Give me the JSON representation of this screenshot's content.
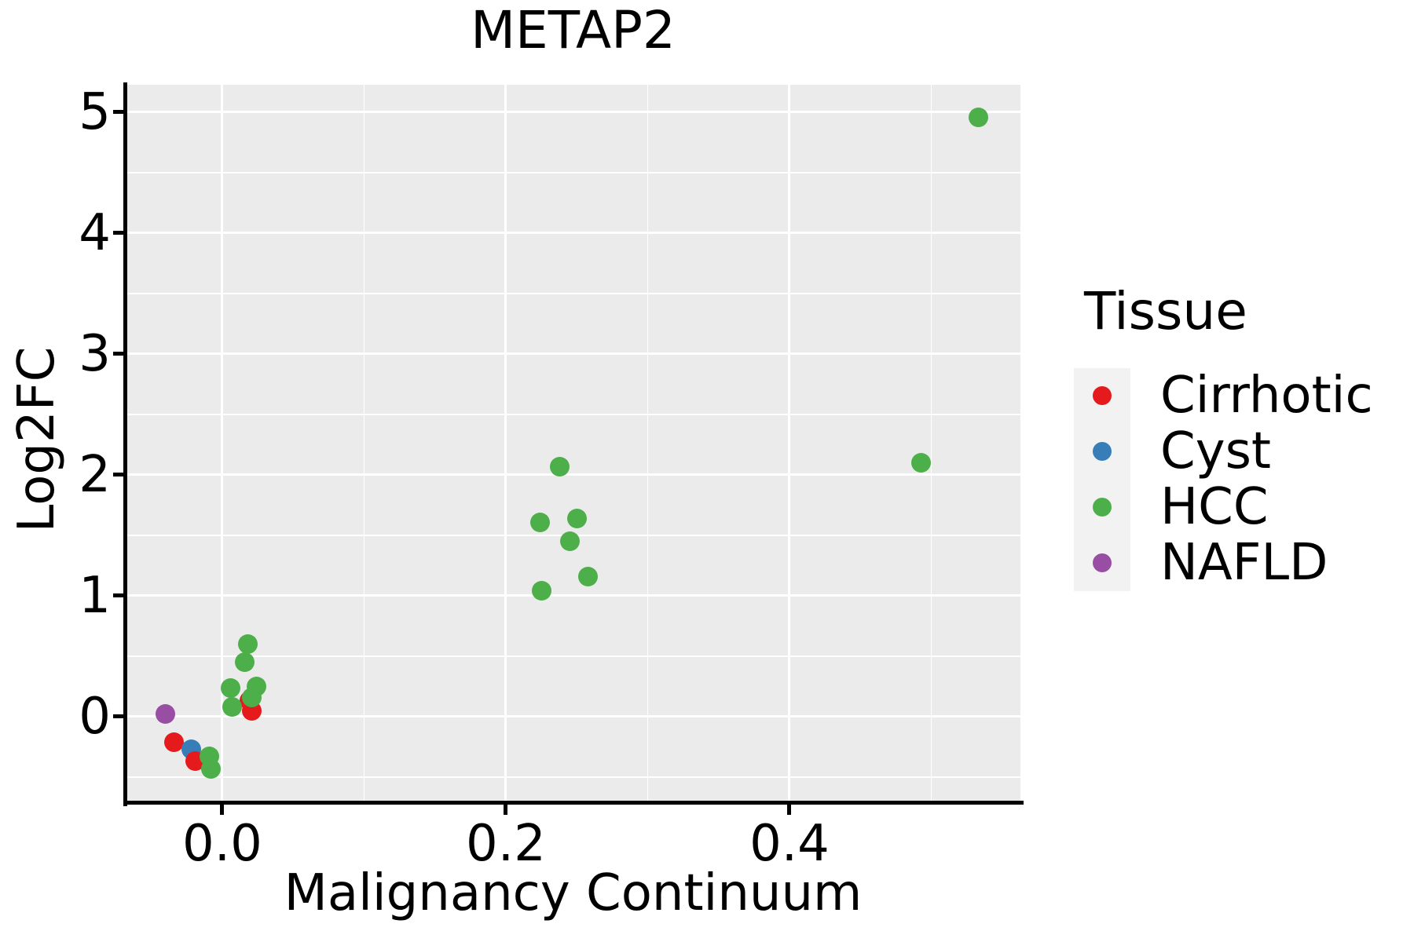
{
  "chart_data": {
    "type": "scatter",
    "title": "METAP2",
    "xlabel": "Malignancy Continuum",
    "ylabel": "Log2FC",
    "xlim": [
      -0.0681,
      0.5629
    ],
    "ylim": [
      -0.708,
      5.227
    ],
    "x_major_ticks": [
      {
        "value": 0.0,
        "label": "0.0"
      },
      {
        "value": 0.2,
        "label": "0.2"
      },
      {
        "value": 0.4,
        "label": "0.4"
      }
    ],
    "x_minor_ticks": [
      0.1,
      0.3,
      0.5
    ],
    "y_major_ticks": [
      {
        "value": 0,
        "label": "0"
      },
      {
        "value": 1,
        "label": "1"
      },
      {
        "value": 2,
        "label": "2"
      },
      {
        "value": 3,
        "label": "3"
      },
      {
        "value": 4,
        "label": "4"
      },
      {
        "value": 5,
        "label": "5"
      }
    ],
    "y_minor_ticks": [
      -0.5,
      0.5,
      1.5,
      2.5,
      3.5,
      4.5
    ],
    "grid": {
      "panel_bg": "#EBEBEB",
      "major_color": "#FFFFFF",
      "minor_color": "#FFFFFF",
      "grid_on": true
    },
    "legend": {
      "title": "Tissue",
      "position": "right",
      "key_bg": "#F2F2F2",
      "items": [
        {
          "label": "Cirrhotic",
          "color": "#E41A1C"
        },
        {
          "label": "Cyst",
          "color": "#377EB8"
        },
        {
          "label": "HCC",
          "color": "#4DAF4A"
        },
        {
          "label": "NAFLD",
          "color": "#984EA3"
        }
      ]
    },
    "tissue_colors": {
      "Cirrhotic": "#E41A1C",
      "Cyst": "#377EB8",
      "HCC": "#4DAF4A",
      "NAFLD": "#984EA3"
    },
    "points": [
      {
        "tissue": "NAFLD",
        "x": -0.04,
        "y": 0.02
      },
      {
        "tissue": "Cirrhotic",
        "x": -0.034,
        "y": -0.21
      },
      {
        "tissue": "Cyst",
        "x": -0.022,
        "y": -0.27
      },
      {
        "tissue": "Cirrhotic",
        "x": -0.019,
        "y": -0.37
      },
      {
        "tissue": "Cirrhotic",
        "x": 0.019,
        "y": 0.13
      },
      {
        "tissue": "Cirrhotic",
        "x": 0.021,
        "y": 0.05
      },
      {
        "tissue": "HCC",
        "x": -0.009,
        "y": -0.33
      },
      {
        "tissue": "HCC",
        "x": -0.008,
        "y": -0.43
      },
      {
        "tissue": "HCC",
        "x": 0.006,
        "y": 0.24
      },
      {
        "tissue": "HCC",
        "x": 0.007,
        "y": 0.08
      },
      {
        "tissue": "HCC",
        "x": 0.016,
        "y": 0.45
      },
      {
        "tissue": "HCC",
        "x": 0.018,
        "y": 0.6
      },
      {
        "tissue": "HCC",
        "x": 0.021,
        "y": 0.16
      },
      {
        "tissue": "HCC",
        "x": 0.024,
        "y": 0.25
      },
      {
        "tissue": "HCC",
        "x": 0.224,
        "y": 1.61
      },
      {
        "tissue": "HCC",
        "x": 0.225,
        "y": 1.04
      },
      {
        "tissue": "HCC",
        "x": 0.238,
        "y": 2.07
      },
      {
        "tissue": "HCC",
        "x": 0.245,
        "y": 1.45
      },
      {
        "tissue": "HCC",
        "x": 0.25,
        "y": 1.64
      },
      {
        "tissue": "HCC",
        "x": 0.258,
        "y": 1.16
      },
      {
        "tissue": "HCC",
        "x": 0.493,
        "y": 2.1
      },
      {
        "tissue": "HCC",
        "x": 0.533,
        "y": 4.96
      }
    ]
  }
}
